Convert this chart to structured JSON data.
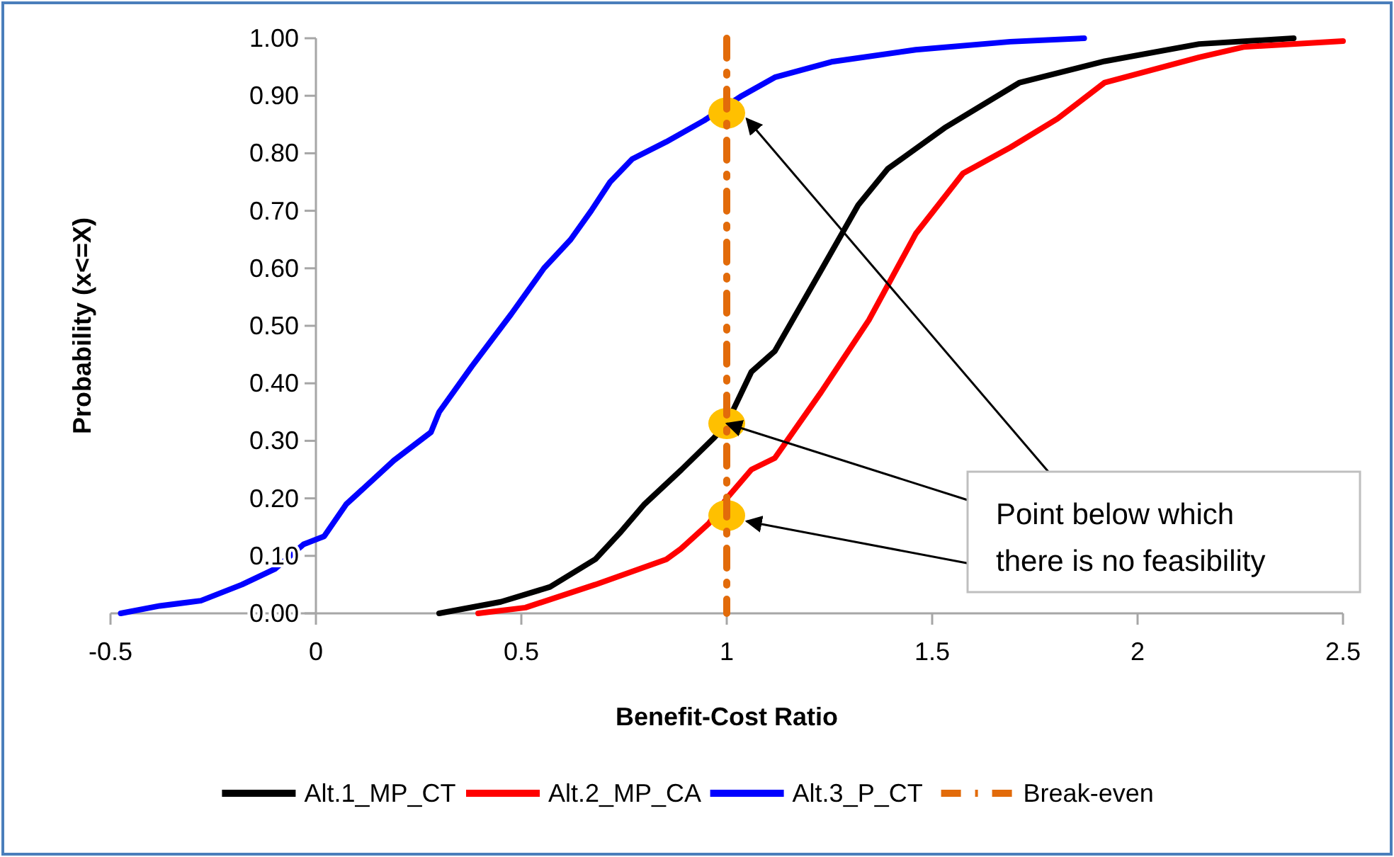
{
  "chart_data": {
    "type": "line",
    "xlabel": "Benefit-Cost Ratio",
    "ylabel": "Probability (x<=X)",
    "xlim": [
      -0.5,
      2.5
    ],
    "ylim": [
      0,
      1
    ],
    "xticks": [
      -0.5,
      0,
      0.5,
      1,
      1.5,
      2,
      2.5
    ],
    "yticks": [
      {
        "value": 0,
        "label": "0.00"
      },
      {
        "value": 0.1,
        "label": "0.10"
      },
      {
        "value": 0.2,
        "label": "0.20"
      },
      {
        "value": 0.3,
        "label": "0.30"
      },
      {
        "value": 0.4,
        "label": "0.40"
      },
      {
        "value": 0.5,
        "label": "0.50"
      },
      {
        "value": 0.6,
        "label": "0.60"
      },
      {
        "value": 0.7,
        "label": "0.70"
      },
      {
        "value": 0.8,
        "label": "0.80"
      },
      {
        "value": 0.9,
        "label": "0.90"
      },
      {
        "value": 1,
        "label": "1.00"
      }
    ],
    "grid": false,
    "legend": "bottom",
    "marker": "none",
    "line_style": "solid",
    "series": [
      {
        "name": "Alt.1_MP_CT",
        "color": "#000000",
        "x": [
          0.3,
          0.45,
          0.57,
          0.68,
          0.74,
          0.8,
          0.89,
          0.97,
          1.0,
          1.06,
          1.117,
          1.23,
          1.32,
          1.392,
          1.53,
          1.713,
          1.92,
          2.15,
          2.38
        ],
        "values": [
          0,
          0.02,
          0.046,
          0.094,
          0.14,
          0.19,
          0.25,
          0.306,
          0.33,
          0.42,
          0.456,
          0.597,
          0.71,
          0.773,
          0.844,
          0.923,
          0.96,
          0.99,
          1.0
        ]
      },
      {
        "name": "Alt.2_MP_CA",
        "color": "#ff0000",
        "x": [
          0.395,
          0.51,
          0.68,
          0.853,
          0.888,
          0.956,
          1.0,
          1.06,
          1.117,
          1.23,
          1.346,
          1.46,
          1.575,
          1.69,
          1.805,
          1.92,
          2.15,
          2.26,
          2.5
        ],
        "values": [
          0,
          0.01,
          0.05,
          0.094,
          0.112,
          0.156,
          0.2,
          0.25,
          0.27,
          0.385,
          0.51,
          0.66,
          0.765,
          0.81,
          0.86,
          0.923,
          0.967,
          0.985,
          0.995
        ]
      },
      {
        "name": "Alt.3_P_CT",
        "color": "#0000ff",
        "x": [
          -0.475,
          -0.38,
          -0.28,
          -0.18,
          -0.1,
          -0.03,
          0.02,
          0.074,
          0.12,
          0.19,
          0.28,
          0.3,
          0.38,
          0.475,
          0.555,
          0.62,
          0.67,
          0.716,
          0.77,
          0.853,
          0.945,
          1.037,
          1.117,
          1.255,
          1.46,
          1.69,
          1.87
        ],
        "values": [
          0,
          0.013,
          0.022,
          0.05,
          0.077,
          0.12,
          0.134,
          0.19,
          0.22,
          0.266,
          0.315,
          0.35,
          0.43,
          0.52,
          0.6,
          0.65,
          0.7,
          0.75,
          0.79,
          0.82,
          0.857,
          0.9,
          0.932,
          0.959,
          0.98,
          0.994,
          1.0
        ]
      },
      {
        "type": "scatter",
        "color": "#ffc000",
        "marker": "circle",
        "x": [
          1,
          1,
          1
        ],
        "values": [
          0.87,
          0.33,
          0.17
        ]
      }
    ],
    "ref_lines": [
      {
        "axis": "x",
        "value": 1,
        "label": "Break-even",
        "color": "#e26b0a",
        "line_style": "dashdot"
      }
    ],
    "annotations": [
      {
        "text": "Point below which there is no feasibility",
        "x": 1,
        "y": 0.33
      }
    ]
  }
}
